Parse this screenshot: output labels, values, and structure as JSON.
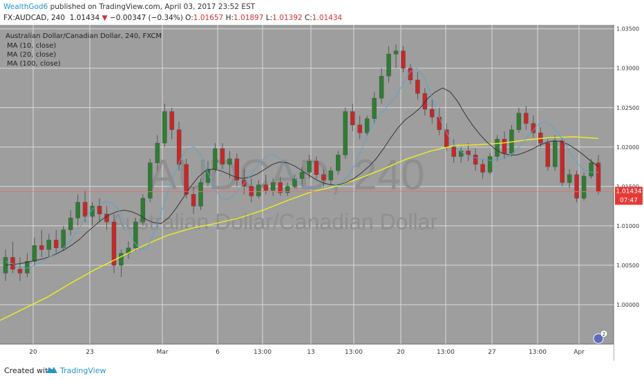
{
  "header": {
    "author": "WealthGod6",
    "published": " published on TradingView.com, April 03, 2017 23:52 EST",
    "symbol": "FX:AUDCAD, 240",
    "last": "1.01434",
    "change": "−0.00347 (−0.34%)",
    "o_label": "O:",
    "o_value": "1.01657",
    "h_label": "H:",
    "h_value": "1.01897",
    "l_label": "L:",
    "l_value": "1.01392",
    "c_label": "C:",
    "c_value": "1.01434"
  },
  "legend": {
    "instrument": "Australian Dollar/Canadian Dollar, 240, FXCM",
    "ma10": "MA (10, close)",
    "ma20": "MA (20, close)",
    "ma100": "MA (100, close)"
  },
  "watermark": {
    "symbol": "AUDCAD, 240",
    "name": "Australian Dollar/Canadian Dollar"
  },
  "price_tag": {
    "value": "1.01434",
    "countdown": "07:47"
  },
  "alert_badge": "2",
  "footer": {
    "created": "Created with",
    "brand": "TradingView"
  },
  "colors": {
    "background": "#9e9e9e",
    "grid": "#dadada",
    "up": "#2e7d32",
    "down": "#c62828",
    "wick": "#555555",
    "ma10": "#5ea3c9",
    "ma20": "#333333",
    "ma100": "#f0f01e",
    "price_line": "#e57373",
    "price_tag": "#e53935"
  },
  "chart_data": {
    "type": "candlestick",
    "y_range": [
      0.995,
      1.0355
    ],
    "y_ticks": [
      "1.03500",
      "1.03000",
      "1.02500",
      "1.02000",
      "1.01500",
      "1.01000",
      "1.00500",
      "1.00000"
    ],
    "y_tick_values": [
      1.035,
      1.03,
      1.025,
      1.02,
      1.015,
      1.01,
      1.005,
      1.0
    ],
    "x_ticks": [
      "20",
      "23",
      "Mar",
      "6",
      "13:00",
      "13",
      "13:00",
      "20",
      "13:00",
      "27",
      "13:00",
      "Apr"
    ],
    "last_price": 1.01434,
    "ma10_values": [
      1.0055,
      1.0052,
      1.0048,
      1.0046,
      1.0049,
      1.0053,
      1.0058,
      1.0063,
      1.0068,
      1.0075,
      1.0085,
      1.0098,
      1.0112,
      1.0122,
      1.0128,
      1.0131,
      1.0128,
      1.0118,
      1.01,
      1.008,
      1.007,
      1.0072,
      1.009,
      1.0115,
      1.014,
      1.0165,
      1.0185,
      1.0198,
      1.02,
      1.019,
      1.0168,
      1.0148,
      1.0135,
      1.0133,
      1.014,
      1.015,
      1.016,
      1.0172,
      1.0183,
      1.019,
      1.019,
      1.0182,
      1.017,
      1.016,
      1.0152,
      1.0148,
      1.0147,
      1.0148,
      1.015,
      1.0152,
      1.0155,
      1.0165,
      1.018,
      1.02,
      1.022,
      1.0235,
      1.0245,
      1.0255,
      1.0265,
      1.028,
      1.0295,
      1.03,
      1.029,
      1.027,
      1.0245,
      1.0225,
      1.021,
      1.0198,
      1.0192,
      1.0188,
      1.0186,
      1.0184,
      1.0183,
      1.0184,
      1.0186,
      1.019,
      1.0198,
      1.0208,
      1.0218,
      1.0228,
      1.0232,
      1.0228,
      1.0218,
      1.0205,
      1.019,
      1.0178,
      1.017,
      1.0168,
      1.0168
    ],
    "ma20_values": [
      1.005,
      1.0051,
      1.0052,
      1.0054,
      1.0056,
      1.0058,
      1.0061,
      1.0065,
      1.007,
      1.0076,
      1.0083,
      1.0092,
      1.01,
      1.0108,
      1.0114,
      1.0118,
      1.012,
      1.0118,
      1.0114,
      1.0108,
      1.0104,
      1.0103,
      1.011,
      1.0122,
      1.0136,
      1.015,
      1.0162,
      1.017,
      1.0172,
      1.017,
      1.0166,
      1.0162,
      1.016,
      1.0162,
      1.0166,
      1.0172,
      1.0178,
      1.0181,
      1.018,
      1.0176,
      1.017,
      1.0164,
      1.0158,
      1.0154,
      1.0152,
      1.0152,
      1.0155,
      1.016,
      1.0167,
      1.0175,
      1.0185,
      1.0198,
      1.0212,
      1.0225,
      1.0235,
      1.0242,
      1.025,
      1.0262,
      1.027,
      1.0275,
      1.027,
      1.0258,
      1.0242,
      1.0228,
      1.0216,
      1.0206,
      1.0198,
      1.0192,
      1.019,
      1.019,
      1.0193,
      1.0197,
      1.0202,
      1.0206,
      1.0208,
      1.0207,
      1.0203,
      1.0197,
      1.019,
      1.0182,
      1.0175
    ],
    "ma100_values": [
      0.998,
      0.9995,
      1.001,
      1.0028,
      1.0045,
      1.006,
      1.0075,
      1.0088,
      1.0097,
      1.0103,
      1.011,
      1.012,
      1.0132,
      1.0143,
      1.015,
      1.016,
      1.0172,
      1.0185,
      1.0195,
      1.0202,
      1.0203,
      1.0205,
      1.0209,
      1.0212,
      1.0213,
      1.0211
    ],
    "candles": [
      {
        "o": 1.004,
        "h": 1.007,
        "l": 1.003,
        "c": 1.006
      },
      {
        "o": 1.006,
        "h": 1.008,
        "l": 1.004,
        "c": 1.0045
      },
      {
        "o": 1.0045,
        "h": 1.006,
        "l": 1.003,
        "c": 1.004
      },
      {
        "o": 1.004,
        "h": 1.0065,
        "l": 1.0035,
        "c": 1.0055
      },
      {
        "o": 1.0055,
        "h": 1.0085,
        "l": 1.005,
        "c": 1.0075
      },
      {
        "o": 1.0075,
        "h": 1.0095,
        "l": 1.006,
        "c": 1.007
      },
      {
        "o": 1.007,
        "h": 1.009,
        "l": 1.006,
        "c": 1.0082
      },
      {
        "o": 1.0082,
        "h": 1.0095,
        "l": 1.0065,
        "c": 1.0072
      },
      {
        "o": 1.0072,
        "h": 1.01,
        "l": 1.0068,
        "c": 1.0095
      },
      {
        "o": 1.0095,
        "h": 1.012,
        "l": 1.0088,
        "c": 1.011
      },
      {
        "o": 1.011,
        "h": 1.014,
        "l": 1.01,
        "c": 1.013
      },
      {
        "o": 1.013,
        "h": 1.0145,
        "l": 1.0105,
        "c": 1.0112
      },
      {
        "o": 1.0112,
        "h": 1.013,
        "l": 1.01,
        "c": 1.0125
      },
      {
        "o": 1.0125,
        "h": 1.0135,
        "l": 1.0105,
        "c": 1.0115
      },
      {
        "o": 1.0115,
        "h": 1.0125,
        "l": 1.0095,
        "c": 1.0105
      },
      {
        "o": 1.0105,
        "h": 1.0115,
        "l": 1.004,
        "c": 1.005
      },
      {
        "o": 1.005,
        "h": 1.007,
        "l": 1.0035,
        "c": 1.0065
      },
      {
        "o": 1.0065,
        "h": 1.008,
        "l": 1.0058,
        "c": 1.0072
      },
      {
        "o": 1.0072,
        "h": 1.011,
        "l": 1.0068,
        "c": 1.0105
      },
      {
        "o": 1.0105,
        "h": 1.014,
        "l": 1.01,
        "c": 1.0135
      },
      {
        "o": 1.0135,
        "h": 1.0185,
        "l": 1.013,
        "c": 1.018
      },
      {
        "o": 1.018,
        "h": 1.0215,
        "l": 1.017,
        "c": 1.0205
      },
      {
        "o": 1.0205,
        "h": 1.0255,
        "l": 1.02,
        "c": 1.0245
      },
      {
        "o": 1.0245,
        "h": 1.025,
        "l": 1.021,
        "c": 1.0222
      },
      {
        "o": 1.0222,
        "h": 1.0232,
        "l": 1.017,
        "c": 1.0178
      },
      {
        "o": 1.0178,
        "h": 1.0185,
        "l": 1.0135,
        "c": 1.014
      },
      {
        "o": 1.014,
        "h": 1.015,
        "l": 1.0115,
        "c": 1.0125
      },
      {
        "o": 1.0125,
        "h": 1.016,
        "l": 1.012,
        "c": 1.0155
      },
      {
        "o": 1.0155,
        "h": 1.0182,
        "l": 1.015,
        "c": 1.0172
      },
      {
        "o": 1.0172,
        "h": 1.0205,
        "l": 1.0168,
        "c": 1.0198
      },
      {
        "o": 1.0198,
        "h": 1.0205,
        "l": 1.0172,
        "c": 1.0178
      },
      {
        "o": 1.0178,
        "h": 1.0195,
        "l": 1.016,
        "c": 1.0185
      },
      {
        "o": 1.0185,
        "h": 1.0192,
        "l": 1.015,
        "c": 1.0158
      },
      {
        "o": 1.0158,
        "h": 1.0172,
        "l": 1.014,
        "c": 1.015
      },
      {
        "o": 1.015,
        "h": 1.016,
        "l": 1.013,
        "c": 1.0138
      },
      {
        "o": 1.0138,
        "h": 1.0158,
        "l": 1.0135,
        "c": 1.0152
      },
      {
        "o": 1.0152,
        "h": 1.0165,
        "l": 1.014,
        "c": 1.0145
      },
      {
        "o": 1.0145,
        "h": 1.016,
        "l": 1.0138,
        "c": 1.0155
      },
      {
        "o": 1.0155,
        "h": 1.0162,
        "l": 1.0138,
        "c": 1.0142
      },
      {
        "o": 1.0142,
        "h": 1.0155,
        "l": 1.0138,
        "c": 1.015
      },
      {
        "o": 1.015,
        "h": 1.0165,
        "l": 1.0148,
        "c": 1.016
      },
      {
        "o": 1.016,
        "h": 1.0175,
        "l": 1.015,
        "c": 1.0168
      },
      {
        "o": 1.0168,
        "h": 1.019,
        "l": 1.016,
        "c": 1.0182
      },
      {
        "o": 1.0182,
        "h": 1.0188,
        "l": 1.016,
        "c": 1.0165
      },
      {
        "o": 1.0165,
        "h": 1.0172,
        "l": 1.015,
        "c": 1.0158
      },
      {
        "o": 1.0158,
        "h": 1.0175,
        "l": 1.0152,
        "c": 1.017
      },
      {
        "o": 1.017,
        "h": 1.0195,
        "l": 1.0165,
        "c": 1.019
      },
      {
        "o": 1.019,
        "h": 1.025,
        "l": 1.0185,
        "c": 1.0245
      },
      {
        "o": 1.0245,
        "h": 1.0255,
        "l": 1.022,
        "c": 1.0228
      },
      {
        "o": 1.0228,
        "h": 1.024,
        "l": 1.021,
        "c": 1.0218
      },
      {
        "o": 1.0218,
        "h": 1.024,
        "l": 1.0215,
        "c": 1.0236
      },
      {
        "o": 1.0236,
        "h": 1.027,
        "l": 1.023,
        "c": 1.0262
      },
      {
        "o": 1.0262,
        "h": 1.03,
        "l": 1.0255,
        "c": 1.029
      },
      {
        "o": 1.029,
        "h": 1.0328,
        "l": 1.0282,
        "c": 1.0318
      },
      {
        "o": 1.0318,
        "h": 1.033,
        "l": 1.03,
        "c": 1.0322
      },
      {
        "o": 1.0322,
        "h": 1.0328,
        "l": 1.0295,
        "c": 1.03
      },
      {
        "o": 1.03,
        "h": 1.0305,
        "l": 1.028,
        "c": 1.0285
      },
      {
        "o": 1.0285,
        "h": 1.0295,
        "l": 1.026,
        "c": 1.0268
      },
      {
        "o": 1.0268,
        "h": 1.0275,
        "l": 1.024,
        "c": 1.0248
      },
      {
        "o": 1.0248,
        "h": 1.026,
        "l": 1.023,
        "c": 1.0238
      },
      {
        "o": 1.0238,
        "h": 1.025,
        "l": 1.0215,
        "c": 1.0222
      },
      {
        "o": 1.0222,
        "h": 1.023,
        "l": 1.0195,
        "c": 1.02
      },
      {
        "o": 1.02,
        "h": 1.021,
        "l": 1.018,
        "c": 1.0188
      },
      {
        "o": 1.0188,
        "h": 1.02,
        "l": 1.018,
        "c": 1.0195
      },
      {
        "o": 1.0195,
        "h": 1.0205,
        "l": 1.0182,
        "c": 1.019
      },
      {
        "o": 1.019,
        "h": 1.0198,
        "l": 1.017,
        "c": 1.0178
      },
      {
        "o": 1.0178,
        "h": 1.0185,
        "l": 1.016,
        "c": 1.0168
      },
      {
        "o": 1.0168,
        "h": 1.0192,
        "l": 1.0165,
        "c": 1.0188
      },
      {
        "o": 1.0188,
        "h": 1.0215,
        "l": 1.0182,
        "c": 1.021
      },
      {
        "o": 1.021,
        "h": 1.022,
        "l": 1.0185,
        "c": 1.0192
      },
      {
        "o": 1.0192,
        "h": 1.0228,
        "l": 1.0188,
        "c": 1.0222
      },
      {
        "o": 1.0222,
        "h": 1.025,
        "l": 1.0218,
        "c": 1.0243
      },
      {
        "o": 1.0243,
        "h": 1.0252,
        "l": 1.0222,
        "c": 1.023
      },
      {
        "o": 1.023,
        "h": 1.024,
        "l": 1.0212,
        "c": 1.0218
      },
      {
        "o": 1.0218,
        "h": 1.0225,
        "l": 1.02,
        "c": 1.0205
      },
      {
        "o": 1.0205,
        "h": 1.021,
        "l": 1.017,
        "c": 1.0175
      },
      {
        "o": 1.0175,
        "h": 1.0215,
        "l": 1.017,
        "c": 1.0208
      },
      {
        "o": 1.0208,
        "h": 1.0212,
        "l": 1.015,
        "c": 1.0155
      },
      {
        "o": 1.0155,
        "h": 1.0172,
        "l": 1.0148,
        "c": 1.0165
      },
      {
        "o": 1.0165,
        "h": 1.017,
        "l": 1.013,
        "c": 1.0135
      },
      {
        "o": 1.0135,
        "h": 1.0168,
        "l": 1.0132,
        "c": 1.0163
      },
      {
        "o": 1.0163,
        "h": 1.0185,
        "l": 1.016,
        "c": 1.018
      },
      {
        "o": 1.018,
        "h": 1.019,
        "l": 1.014,
        "c": 1.0143
      }
    ]
  }
}
